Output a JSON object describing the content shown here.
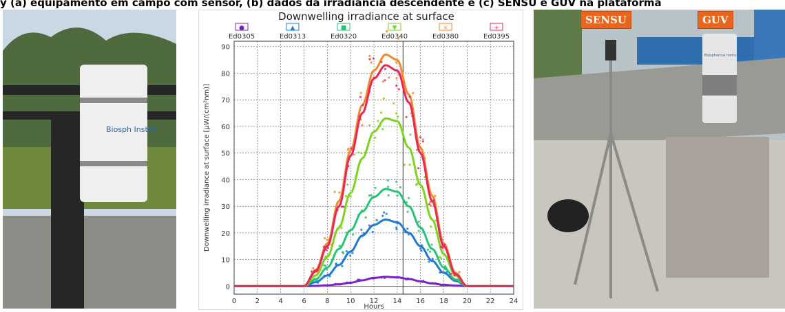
{
  "caption_strip": "y (a) equipamento em campo com sensor, (b) dados da irradiância descendente e (c) SENSU e GUV na plataforma",
  "photo_left": {
    "device_label": "Biosph Instru",
    "colors": {
      "sky": "#c9d8e3",
      "tree": "#4f6a3c",
      "grass": "#6f8a3f",
      "wall": "#8c8c86",
      "pole": "#262626",
      "device": "#efefef"
    }
  },
  "photo_right": {
    "badges": [
      "SENSU",
      "GUV"
    ],
    "device_label": "Biospherical Instruments Inc.",
    "colors": {
      "sky": "#b8c3c8",
      "roof": "#9a9a94",
      "floor": "#c9c6bf",
      "block": "#a8a29a",
      "tripod": "#8a8a86",
      "device": "#e6e6e6"
    }
  },
  "chart_data": {
    "type": "line",
    "title": "Downwelling irradiance at surface",
    "xlabel": "Hours",
    "ylabel": "Downwelling irradiance at surface [µW/(cm²nm)]",
    "xlim": [
      0,
      24
    ],
    "ylim": [
      -3,
      92
    ],
    "xticks": [
      0,
      2,
      4,
      6,
      8,
      10,
      12,
      14,
      16,
      18,
      20,
      22,
      24
    ],
    "yticks": [
      0,
      10,
      20,
      30,
      40,
      50,
      60,
      70,
      80,
      90
    ],
    "grid": true,
    "legend_position": "top",
    "vline_x": 14.5,
    "series": [
      {
        "name": "Ed0305",
        "marker": "●",
        "color": "#7b22c4",
        "x": [
          0,
          6,
          7,
          8,
          9,
          10,
          11,
          12,
          13,
          14,
          15,
          16,
          17,
          18,
          19,
          20,
          24
        ],
        "y": [
          0,
          0,
          0.1,
          0.3,
          0.7,
          1.3,
          2.2,
          3.1,
          3.5,
          3.3,
          2.7,
          1.8,
          1.0,
          0.5,
          0.2,
          0,
          0
        ]
      },
      {
        "name": "Ed0313",
        "marker": "▲",
        "color": "#1e78d6",
        "x": [
          0,
          6,
          7,
          8,
          9,
          10,
          11,
          12,
          13,
          14,
          15,
          16,
          17,
          18,
          19,
          20,
          24
        ],
        "y": [
          0,
          0,
          1.5,
          4,
          8,
          13,
          19,
          23,
          25,
          24,
          20,
          15,
          9.5,
          5,
          2,
          0,
          0
        ]
      },
      {
        "name": "Ed0320",
        "marker": "■",
        "color": "#26c477",
        "x": [
          0,
          6,
          7,
          8,
          9,
          10,
          11,
          12,
          13,
          14,
          15,
          16,
          17,
          18,
          19,
          20,
          24
        ],
        "y": [
          0,
          0,
          2.5,
          7,
          14,
          21,
          28,
          33.5,
          36.5,
          35.5,
          30,
          22,
          14,
          7,
          2.5,
          0,
          0
        ]
      },
      {
        "name": "Ed0340",
        "marker": "▼",
        "color": "#7ed321",
        "x": [
          0,
          6,
          7,
          8,
          9,
          10,
          11,
          12,
          13,
          14,
          15,
          16,
          17,
          18,
          19,
          20,
          24
        ],
        "y": [
          0,
          0,
          4,
          11,
          22,
          35,
          48,
          58,
          63,
          62,
          52,
          38,
          25,
          12,
          4,
          0,
          0
        ]
      },
      {
        "name": "Ed0380",
        "marker": "×",
        "color": "#f08a2a",
        "x": [
          0,
          6,
          7,
          8,
          9,
          10,
          11,
          12,
          13,
          14,
          15,
          16,
          17,
          18,
          19,
          20,
          24
        ],
        "y": [
          0,
          0,
          6,
          16,
          32,
          51,
          68,
          81,
          87,
          85,
          72,
          52,
          34,
          16,
          5,
          0,
          0
        ]
      },
      {
        "name": "Ed0395",
        "marker": "+",
        "color": "#e6285a",
        "x": [
          0,
          6,
          7,
          8,
          9,
          10,
          11,
          12,
          13,
          14,
          15,
          16,
          17,
          18,
          19,
          20,
          24
        ],
        "y": [
          0,
          0,
          5.5,
          15,
          30,
          49,
          65,
          78,
          83,
          81,
          69,
          50,
          32,
          15,
          4.5,
          0,
          0
        ]
      }
    ]
  }
}
